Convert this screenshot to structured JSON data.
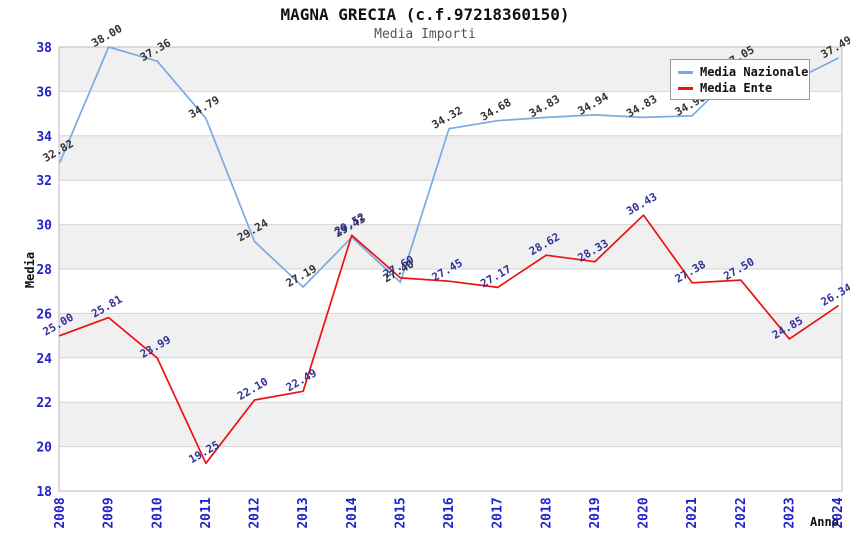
{
  "header": {
    "title": "MAGNA GRECIA (c.f.97218360150)",
    "subtitle": "Media Importi"
  },
  "axes": {
    "y_title": "Media",
    "x_title": "Anno",
    "tick_color": "#2222cc"
  },
  "legend": {
    "position": "top-right-overlapping-plot",
    "items": [
      {
        "label": "Media Nazionale",
        "color": "#79abe2"
      },
      {
        "label": "Media Ente",
        "color": "#ee1111"
      }
    ]
  },
  "style_colors": {
    "band_gray": "#f0f0f0",
    "gridline": "#d4d4d4",
    "plot_border": "#bbbbbb",
    "title": "#111111",
    "subtitle": "#555555"
  },
  "chart_data": {
    "type": "line",
    "title": "MAGNA GRECIA (c.f.97218360150)",
    "subtitle": "Media Importi",
    "xlabel": "Anno",
    "ylabel": "Media",
    "x": [
      2008,
      2009,
      2010,
      2011,
      2012,
      2013,
      2014,
      2015,
      2016,
      2017,
      2018,
      2019,
      2020,
      2021,
      2022,
      2023,
      2024
    ],
    "ylim": [
      18,
      38
    ],
    "y_tick_step": 2,
    "y_ticks": [
      18,
      20,
      22,
      24,
      26,
      28,
      30,
      32,
      34,
      36,
      38
    ],
    "grid": "horizontal gridlines every 2 units; alternating gray/white horizontal bands (gray: 36-38, 32-34, 28-30, 24-26, 20-22)",
    "legend_position": "top-right, white box overlapping plot area",
    "series": [
      {
        "name": "Media Nazionale",
        "color": "#79abe2",
        "label_color": "#333333",
        "values": [
          32.82,
          38.0,
          37.36,
          34.79,
          29.24,
          27.19,
          29.43,
          27.4,
          34.32,
          34.68,
          34.83,
          34.94,
          34.83,
          34.9,
          37.05,
          36.4,
          37.49
        ],
        "point_labels": [
          "32.82",
          "38.00",
          "37.36",
          "34.79",
          "29.24",
          "27.19",
          "29.43",
          "27.40",
          "34.32",
          "34.68",
          "34.83",
          "34.94",
          "34.83",
          "34.90",
          "37.05",
          "36.40",
          "37.49"
        ],
        "labels_obscured_by_legend_years": [
          2021,
          2023
        ]
      },
      {
        "name": "Media Ente",
        "color": "#ee1111",
        "label_color": "#333399",
        "values": [
          25.0,
          25.81,
          23.99,
          19.25,
          22.1,
          22.49,
          29.52,
          27.6,
          27.45,
          27.17,
          28.62,
          28.33,
          30.43,
          27.38,
          27.5,
          24.85,
          26.34
        ],
        "point_labels": [
          "25.00",
          "25.81",
          "23.99",
          "19.25",
          "22.10",
          "22.49",
          "29.52",
          "27.60",
          "27.45",
          "27.17",
          "28.62",
          "28.33",
          "30.43",
          "27.38",
          "27.50",
          "24.85",
          "26.34"
        ]
      }
    ]
  }
}
